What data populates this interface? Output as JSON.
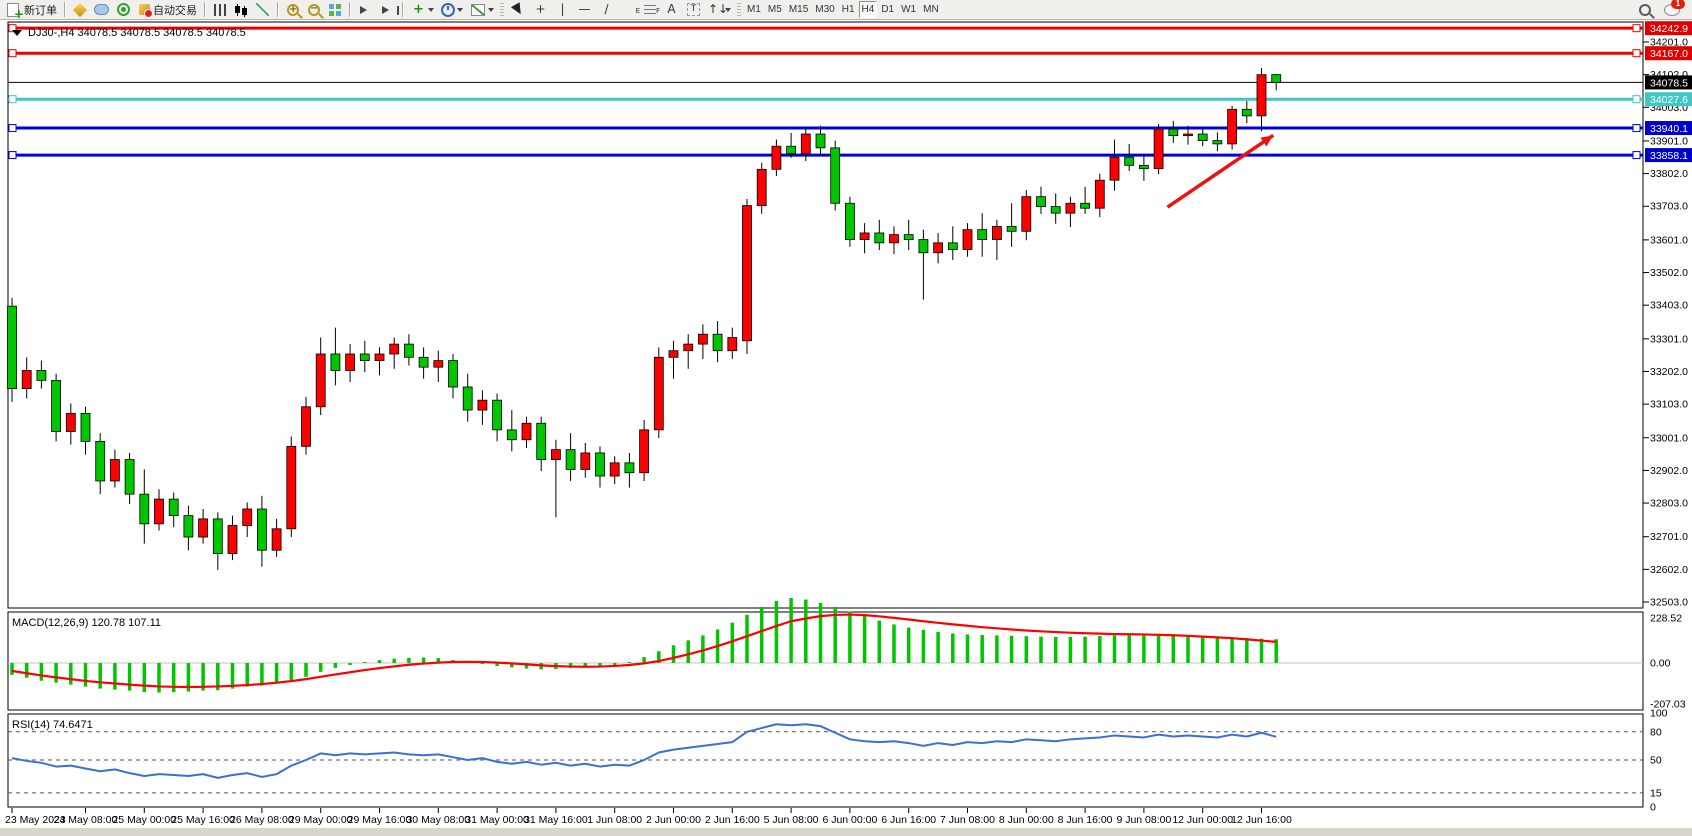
{
  "toolbar": {
    "chat_badge": "1",
    "groups": [
      {
        "name": "trade",
        "items": [
          {
            "name": "new-order-button",
            "icon": "doc",
            "label": "新订单",
            "interactable": true
          }
        ]
      },
      {
        "name": "services",
        "sep": true,
        "items": [
          {
            "name": "market-button",
            "icon": "gold",
            "interactable": true
          },
          {
            "name": "community-button",
            "icon": "cloud",
            "interactable": true
          },
          {
            "name": "signals-button",
            "icon": "signal",
            "interactable": true
          },
          {
            "name": "autotrade-button",
            "icon": "ea",
            "label": "自动交易",
            "interactable": true
          }
        ]
      },
      {
        "name": "chart-type",
        "sep": true,
        "items": [
          {
            "name": "bar-chart-button",
            "icon": "bars",
            "interactable": true
          },
          {
            "name": "candlestick-chart-button",
            "icon": "candle",
            "interactable": true
          },
          {
            "name": "line-chart-button",
            "icon": "linechart",
            "interactable": true
          }
        ]
      },
      {
        "name": "zoom",
        "sep": true,
        "items": [
          {
            "name": "zoom-in-button",
            "icon": "magplus",
            "interactable": true
          },
          {
            "name": "zoom-out-button",
            "icon": "magminus",
            "interactable": true
          },
          {
            "name": "tile-windows-button",
            "icon": "tile",
            "interactable": true
          }
        ]
      },
      {
        "name": "scroll",
        "sep": true,
        "items": [
          {
            "name": "auto-scroll-button",
            "icon": "play",
            "interactable": true
          },
          {
            "name": "chart-shift-button",
            "icon": "playshift",
            "interactable": true
          }
        ]
      },
      {
        "name": "insert",
        "sep": true,
        "items": [
          {
            "name": "indicators-button",
            "icon": "plusgreen",
            "caret": true,
            "interactable": true
          },
          {
            "name": "periods-button",
            "icon": "clock",
            "caret": true,
            "interactable": true
          },
          {
            "name": "templates-button",
            "icon": "tpl",
            "caret": true,
            "interactable": true
          }
        ]
      },
      {
        "name": "objects",
        "grip": true,
        "items": [
          {
            "name": "cursor-button",
            "icon": "cursor",
            "interactable": true
          },
          {
            "name": "crosshair-button",
            "glyph": "+",
            "interactable": true
          },
          {
            "name": "vertical-line-button",
            "glyph": "|",
            "interactable": true
          },
          {
            "name": "horizontal-line-button",
            "glyph": "—",
            "interactable": true
          },
          {
            "name": "trendline-button",
            "glyph": "/",
            "interactable": true
          },
          {
            "name": "channel-button",
            "icon": "channel",
            "glyph": "//",
            "interactable": true
          },
          {
            "name": "fibonacci-button",
            "icon": "fib",
            "interactable": true
          },
          {
            "name": "text-button",
            "glyph": "A",
            "interactable": true
          },
          {
            "name": "text-label-button",
            "icon": "T",
            "glyph": "T",
            "interactable": true
          },
          {
            "name": "arrows-button",
            "glyph": "↑↓",
            "caret": true,
            "interactable": true
          }
        ]
      },
      {
        "name": "timeframes",
        "grip": true,
        "items": [
          {
            "name": "tf-m1-button",
            "tf": "M1",
            "interactable": true
          },
          {
            "name": "tf-m5-button",
            "tf": "M5",
            "interactable": true
          },
          {
            "name": "tf-m15-button",
            "tf": "M15",
            "interactable": true
          },
          {
            "name": "tf-m30-button",
            "tf": "M30",
            "interactable": true
          },
          {
            "name": "tf-h1-button",
            "tf": "H1",
            "interactable": true
          },
          {
            "name": "tf-h4-button",
            "tf": "H4",
            "active": true,
            "interactable": true
          },
          {
            "name": "tf-d1-button",
            "tf": "D1",
            "interactable": true
          },
          {
            "name": "tf-w1-button",
            "tf": "W1",
            "interactable": true
          },
          {
            "name": "tf-mn-button",
            "tf": "MN",
            "interactable": true
          }
        ]
      }
    ]
  },
  "chart_data": {
    "type": "candlestick",
    "symbol_title": "DJ30-,H4  34078.5 34078.5 34078.5 34078.5",
    "current_price": "34078.5",
    "colors": {
      "up": "#fd0000",
      "down": "#00c600",
      "wick": "#000000",
      "macd_hist": "#00c600",
      "macd_signal": "#ff0000",
      "rsi_line": "#3a6fd8",
      "arrow": "#ee1111"
    },
    "price_ticks": [
      34201,
      34102,
      34003,
      33901,
      33802,
      33703,
      33601,
      33502,
      33403,
      33301,
      33202,
      33103,
      33001,
      32902,
      32803,
      32701,
      32602,
      32503
    ],
    "hlines": [
      {
        "price": 34242.9,
        "label": "34242.9",
        "color": "#ee0000",
        "width": 3,
        "badge": "#e00000",
        "handles": true
      },
      {
        "price": 34167.0,
        "label": "34167.0",
        "color": "#ee0000",
        "width": 3,
        "badge": "#e00000",
        "handles": true
      },
      {
        "price": 34078.5,
        "label": "34078.5",
        "color": "#000000",
        "width": 1,
        "badge": "#000000",
        "handles": false
      },
      {
        "price": 34027.6,
        "label": "34027.6",
        "color": "#3fc6c6",
        "width": 3,
        "badge": "#3fc6c6",
        "handles": true
      },
      {
        "price": 33940.1,
        "label": "33940.1",
        "color": "#0000dd",
        "width": 3,
        "badge": "#0000cc",
        "handles": true
      },
      {
        "price": 33858.1,
        "label": "33858.1",
        "color": "#0000dd",
        "width": 3,
        "badge": "#0000cc",
        "handles": true
      }
    ],
    "time_labels": [
      "23 May 2023",
      "24 May 08:00",
      "25 May 00:00",
      "25 May 16:00",
      "26 May 08:00",
      "29 May 00:00",
      "29 May 16:00",
      "30 May 08:00",
      "31 May 00:00",
      "31 May 16:00",
      "1 Jun 08:00",
      "2 Jun 00:00",
      "2 Jun 16:00",
      "5 Jun 08:00",
      "6 Jun 00:00",
      "6 Jun 16:00",
      "7 Jun 08:00",
      "8 Jun 00:00",
      "8 Jun 16:00",
      "9 Jun 08:00",
      "12 Jun 00:00",
      "12 Jun 16:00"
    ],
    "bars": [
      [
        33400,
        33425,
        33110,
        33150
      ],
      [
        33150,
        33245,
        33120,
        33205
      ],
      [
        33205,
        33235,
        33150,
        33175
      ],
      [
        33175,
        33195,
        32990,
        33020
      ],
      [
        33020,
        33105,
        32980,
        33075
      ],
      [
        33075,
        33095,
        32950,
        32990
      ],
      [
        32990,
        33015,
        32830,
        32870
      ],
      [
        32870,
        32965,
        32850,
        32935
      ],
      [
        32935,
        32955,
        32800,
        32830
      ],
      [
        32830,
        32905,
        32680,
        32740
      ],
      [
        32740,
        32845,
        32720,
        32815
      ],
      [
        32815,
        32835,
        32730,
        32765
      ],
      [
        32765,
        32795,
        32660,
        32700
      ],
      [
        32700,
        32785,
        32680,
        32755
      ],
      [
        32755,
        32775,
        32600,
        32650
      ],
      [
        32650,
        32765,
        32630,
        32735
      ],
      [
        32735,
        32805,
        32700,
        32785
      ],
      [
        32785,
        32825,
        32610,
        32660
      ],
      [
        32660,
        32755,
        32640,
        32725
      ],
      [
        32725,
        33005,
        32700,
        32975
      ],
      [
        32975,
        33125,
        32950,
        33095
      ],
      [
        33095,
        33305,
        33070,
        33255
      ],
      [
        33255,
        33335,
        33160,
        33205
      ],
      [
        33205,
        33285,
        33170,
        33255
      ],
      [
        33255,
        33295,
        33200,
        33235
      ],
      [
        33235,
        33275,
        33190,
        33255
      ],
      [
        33255,
        33305,
        33210,
        33285
      ],
      [
        33285,
        33315,
        33220,
        33245
      ],
      [
        33245,
        33275,
        33180,
        33215
      ],
      [
        33215,
        33265,
        33170,
        33235
      ],
      [
        33235,
        33255,
        33120,
        33155
      ],
      [
        33155,
        33195,
        33050,
        33085
      ],
      [
        33085,
        33145,
        33040,
        33115
      ],
      [
        33115,
        33135,
        32990,
        33025
      ],
      [
        33025,
        33085,
        32960,
        32995
      ],
      [
        32995,
        33065,
        32970,
        33045
      ],
      [
        33045,
        33065,
        32900,
        32935
      ],
      [
        32935,
        32995,
        32760,
        32965
      ],
      [
        32965,
        33015,
        32870,
        32905
      ],
      [
        32905,
        32985,
        32880,
        32955
      ],
      [
        32955,
        32975,
        32850,
        32885
      ],
      [
        32885,
        32945,
        32860,
        32925
      ],
      [
        32925,
        32955,
        32850,
        32895
      ],
      [
        32895,
        33055,
        32870,
        33025
      ],
      [
        33025,
        33275,
        33000,
        33245
      ],
      [
        33245,
        33295,
        33180,
        33265
      ],
      [
        33265,
        33315,
        33210,
        33285
      ],
      [
        33285,
        33345,
        33240,
        33315
      ],
      [
        33315,
        33355,
        33230,
        33265
      ],
      [
        33265,
        33335,
        33240,
        33305
      ],
      [
        33295,
        33725,
        33255,
        33705
      ],
      [
        33705,
        33835,
        33680,
        33815
      ],
      [
        33815,
        33905,
        33795,
        33885
      ],
      [
        33885,
        33925,
        33850,
        33862
      ],
      [
        33862,
        33942,
        33840,
        33922
      ],
      [
        33922,
        33947,
        33858,
        33880
      ],
      [
        33880,
        33902,
        33690,
        33712
      ],
      [
        33712,
        33732,
        33580,
        33602
      ],
      [
        33602,
        33652,
        33560,
        33622
      ],
      [
        33622,
        33662,
        33570,
        33592
      ],
      [
        33592,
        33642,
        33558,
        33617
      ],
      [
        33617,
        33662,
        33570,
        33602
      ],
      [
        33602,
        33632,
        33420,
        33562
      ],
      [
        33562,
        33622,
        33530,
        33592
      ],
      [
        33592,
        33642,
        33540,
        33572
      ],
      [
        33572,
        33652,
        33550,
        33632
      ],
      [
        33632,
        33682,
        33550,
        33602
      ],
      [
        33602,
        33662,
        33540,
        33642
      ],
      [
        33642,
        33712,
        33580,
        33627
      ],
      [
        33627,
        33752,
        33600,
        33732
      ],
      [
        33732,
        33762,
        33680,
        33702
      ],
      [
        33702,
        33742,
        33650,
        33682
      ],
      [
        33682,
        33732,
        33640,
        33712
      ],
      [
        33712,
        33762,
        33680,
        33697
      ],
      [
        33697,
        33802,
        33670,
        33782
      ],
      [
        33782,
        33905,
        33750,
        33852
      ],
      [
        33852,
        33892,
        33810,
        33827
      ],
      [
        33827,
        33862,
        33780,
        33817
      ],
      [
        33817,
        33952,
        33800,
        33937
      ],
      [
        33937,
        33962,
        33895,
        33917
      ],
      [
        33917,
        33947,
        33890,
        33922
      ],
      [
        33922,
        33937,
        33885,
        33902
      ],
      [
        33902,
        33927,
        33870,
        33892
      ],
      [
        33892,
        34007,
        33875,
        33997
      ],
      [
        33997,
        34022,
        33955,
        33977
      ],
      [
        33977,
        34122,
        33930,
        34102
      ],
      [
        34102,
        34104,
        34055,
        34078.5
      ]
    ],
    "macd": {
      "label": "MACD(12,26,9) 120.78 107.11",
      "axis": [
        "228.52",
        "0.00",
        "-207.03"
      ],
      "axis_values": [
        228.52,
        0,
        -207.03
      ],
      "hist": [
        -60,
        -75,
        -90,
        -100,
        -110,
        -120,
        -130,
        -135,
        -140,
        -148,
        -150,
        -148,
        -145,
        -140,
        -138,
        -130,
        -120,
        -115,
        -105,
        -90,
        -70,
        -45,
        -25,
        -10,
        5,
        15,
        22,
        26,
        28,
        25,
        15,
        5,
        -5,
        -15,
        -22,
        -28,
        -32,
        -30,
        -25,
        -20,
        -15,
        -10,
        5,
        30,
        60,
        90,
        115,
        140,
        170,
        205,
        245,
        285,
        315,
        330,
        322,
        305,
        285,
        262,
        238,
        215,
        196,
        180,
        168,
        158,
        150,
        145,
        142,
        140,
        138,
        136,
        134,
        132,
        132,
        134,
        137,
        141,
        145,
        148,
        148,
        145,
        141,
        137,
        133,
        130,
        127,
        124,
        120.78
      ],
      "signal": [
        -40,
        -52,
        -63,
        -73,
        -82,
        -91,
        -98,
        -104,
        -110,
        -115,
        -119,
        -121,
        -122,
        -121,
        -119,
        -116,
        -112,
        -107,
        -100,
        -92,
        -82,
        -70,
        -58,
        -47,
        -36,
        -26,
        -17,
        -9,
        -3,
        2,
        5,
        6,
        5,
        2,
        -2,
        -7,
        -12,
        -16,
        -18,
        -19,
        -18,
        -15,
        -10,
        -2,
        10,
        26,
        44,
        64,
        86,
        110,
        136,
        162,
        188,
        212,
        226,
        238,
        244,
        246,
        243,
        237,
        229,
        221,
        212,
        204,
        196,
        189,
        182,
        176,
        170,
        165,
        161,
        157,
        154,
        151,
        149,
        147,
        146,
        145,
        143,
        141,
        138,
        134,
        130,
        126,
        120,
        114,
        107.11
      ]
    },
    "rsi": {
      "label": "RSI(14) 74.6471",
      "axis": [
        "100",
        "80",
        "50",
        "15",
        "0"
      ],
      "axis_values": [
        100,
        80,
        50,
        15,
        0
      ],
      "levels": [
        80,
        50,
        15
      ],
      "values": [
        52,
        49,
        47,
        43,
        44,
        41,
        38,
        40,
        36,
        33,
        35,
        34,
        33,
        35,
        31,
        34,
        36,
        32,
        35,
        44,
        50,
        57,
        55,
        57,
        56,
        57,
        58,
        56,
        55,
        56,
        53,
        50,
        52,
        48,
        46,
        48,
        45,
        47,
        44,
        46,
        43,
        45,
        44,
        50,
        58,
        61,
        63,
        65,
        67,
        69,
        80,
        84,
        88,
        87,
        88,
        86,
        79,
        72,
        70,
        69,
        70,
        68,
        65,
        68,
        66,
        69,
        68,
        70,
        69,
        72,
        71,
        70,
        72,
        73,
        74,
        76,
        75,
        74,
        77,
        75,
        76,
        75,
        74,
        77,
        75,
        79,
        74.65
      ]
    },
    "arrow": {
      "from_bar": 78.6,
      "from_price": 33700,
      "to_bar": 85.8,
      "to_price": 33918
    }
  }
}
